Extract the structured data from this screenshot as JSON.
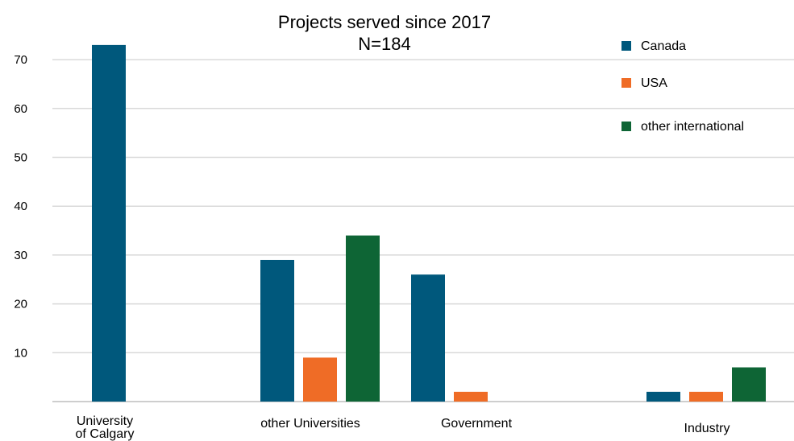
{
  "chart_data": {
    "type": "bar",
    "title": "Projects served since 2017",
    "subtitle": "N=184",
    "categories": [
      [
        "University",
        "of Calgary"
      ],
      [
        "other Universities"
      ],
      [
        "Government"
      ],
      [
        "Industry"
      ]
    ],
    "series": [
      {
        "name": "Canada",
        "color": "#00587c",
        "values": [
          73,
          29,
          26,
          2
        ]
      },
      {
        "name": "USA",
        "color": "#ef6c26",
        "values": [
          0,
          9,
          2,
          2
        ]
      },
      {
        "name": "other international",
        "color": "#0e6535",
        "values": [
          0,
          34,
          0,
          7
        ]
      }
    ],
    "ylim": [
      0,
      75
    ],
    "yticks": [
      10,
      20,
      30,
      40,
      50,
      60,
      70
    ],
    "grid": true,
    "legend": "top-right"
  }
}
